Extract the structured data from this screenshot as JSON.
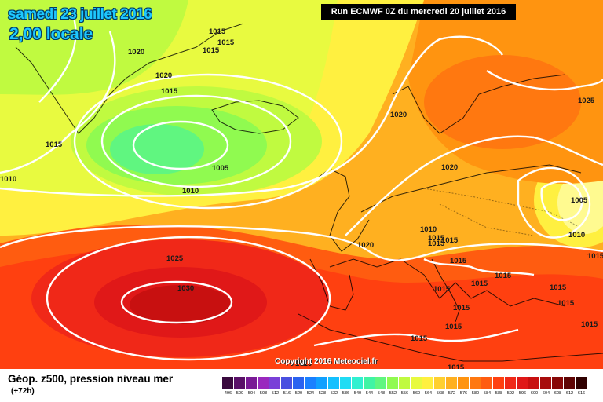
{
  "header": {
    "date_title": "samedi 23 juillet 2016",
    "local_time": "2,00 locale",
    "run_info": "Run ECMWF 0Z du mercredi 20 juillet 2016"
  },
  "footer": {
    "copyright": "Copyright 2016 Meteociel.fr",
    "legend_title": "Géop. z500, pression niveau mer",
    "forecast_offset": "(+72h)"
  },
  "legend": {
    "scale": [
      "496",
      "500",
      "504",
      "508",
      "512",
      "516",
      "520",
      "524",
      "528",
      "532",
      "536",
      "540",
      "544",
      "548",
      "552",
      "556",
      "560",
      "564",
      "568",
      "572",
      "576",
      "580",
      "584",
      "588",
      "592",
      "596",
      "600",
      "604",
      "608",
      "612",
      "616"
    ],
    "colors": [
      "#3a0a3e",
      "#5a1068",
      "#7a1a96",
      "#9a28be",
      "#7a40d8",
      "#4a50e0",
      "#2a62f0",
      "#1a80ff",
      "#10a0ff",
      "#14c0ff",
      "#20dcf4",
      "#30f0d0",
      "#40f4a4",
      "#60f680",
      "#90fa50",
      "#c0fa40",
      "#e8fa40",
      "#fff040",
      "#ffd030",
      "#ffb020",
      "#ff9410",
      "#ff7810",
      "#ff5c10",
      "#ff4010",
      "#f02818",
      "#e01818",
      "#c81010",
      "#a80c0c",
      "#880808",
      "#600404",
      "#300000"
    ]
  },
  "isobars": {
    "labels": [
      "1020",
      "1015",
      "1015",
      "1015",
      "1020",
      "1015",
      "1015",
      "1010",
      "1005",
      "1020",
      "1020",
      "1025",
      "1005",
      "1010",
      "1010",
      "1015",
      "1010",
      "1020",
      "1015",
      "1015",
      "1015",
      "1025",
      "1030",
      "1015",
      "1015",
      "1015",
      "1015",
      "1015",
      "1015",
      "1015",
      "1015",
      "1015",
      "1015",
      "1015",
      "1015"
    ]
  },
  "colors": {
    "banner_bg": "#000000",
    "title_text": "#1ec8ff",
    "isobar": "#ffffff"
  }
}
